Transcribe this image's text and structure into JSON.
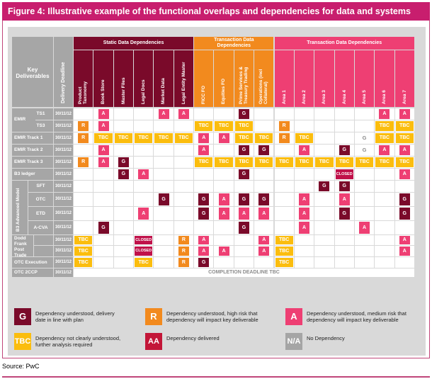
{
  "title": "Figure 4: Illustrative example of the functional overlaps and dependencies for data and systems",
  "header": {
    "key_deliverables": "Key\nDeliverables",
    "delivery_deadline": "Delivery Deadline",
    "groups": [
      "Static Data Dependencies",
      "Transaction Data\nDependencies",
      "Transaction Data Dependencies"
    ],
    "columns": [
      "Product\nTaxonomy",
      "Book Store",
      "Master Files",
      "Legal Docs",
      "Market Data",
      "Legal Entity Master",
      "FICC FO",
      "Equities FO",
      "Prime Services &\nTreasury Trading",
      "Operations (incl\nCollateral)",
      "Area 1",
      "Area 2",
      "Area 3",
      "Area 4",
      "Area 5",
      "Area 6",
      "Area 7"
    ]
  },
  "groups_col": {
    "emir": "EMIR",
    "b3_advanced": "B3 Advanced Model",
    "dodd_frank": "Dodd\nFrank\nPost\nTrade"
  },
  "rows": [
    {
      "sub": "TS1",
      "date": "30/11/12",
      "cells": [
        "",
        "A",
        "",
        "",
        "A",
        "A",
        "",
        "",
        "G",
        "",
        "",
        "",
        "",
        "",
        "",
        "A",
        "A"
      ]
    },
    {
      "sub": "TS3",
      "date": "30/11/12",
      "cells": [
        "R",
        "A",
        "",
        "",
        "",
        "",
        "TBC",
        "TBC",
        "TBC",
        "",
        "R",
        "",
        "",
        "",
        "",
        "TBC",
        "TBC"
      ]
    },
    {
      "label": "EMIR Track 1",
      "date": "30/11/12",
      "cells": [
        "R",
        "TBC",
        "TBC",
        "TBC",
        "TBC",
        "TBC",
        "A",
        "A",
        "TBC",
        "TBC",
        "R",
        "TBC",
        "",
        "",
        "G",
        "TBC",
        "TBC"
      ]
    },
    {
      "label": "EMIR Track 2",
      "date": "30/11/12",
      "cells": [
        "",
        "A",
        "",
        "",
        "",
        "",
        "A",
        "",
        "G",
        "G",
        "",
        "A",
        "",
        "G",
        "G",
        "A",
        "A"
      ]
    },
    {
      "label": "EMIR Track 3",
      "date": "30/11/12",
      "cells": [
        "R",
        "A",
        "G",
        "",
        "",
        "",
        "TBC",
        "TBC",
        "TBC",
        "TBC",
        "TBC",
        "TBC",
        "TBC",
        "TBC",
        "TBC",
        "TBC",
        "TBC"
      ]
    },
    {
      "label": "B3 ledger",
      "date": "30/11/12",
      "cells": [
        "",
        "",
        "G",
        "A",
        "",
        "",
        "",
        "",
        "G",
        "",
        "",
        "",
        "",
        "CLOSED",
        "",
        "",
        "A"
      ]
    },
    {
      "sub": "SFT",
      "date": "30/11/12",
      "cells": [
        "",
        "",
        "",
        "",
        "",
        "",
        "",
        "",
        "",
        "",
        "",
        "",
        "G",
        "G",
        "",
        "",
        ""
      ]
    },
    {
      "sub": "OTC",
      "date": "30/11/12",
      "cells": [
        "",
        "",
        "",
        "",
        "G",
        "",
        "G",
        "A",
        "G",
        "G",
        "",
        "A",
        "",
        "A",
        "",
        "",
        "G"
      ]
    },
    {
      "sub": "ETD",
      "date": "30/11/12",
      "cells": [
        "",
        "",
        "",
        "A",
        "",
        "",
        "G",
        "A",
        "A",
        "A",
        "",
        "A",
        "",
        "G",
        "",
        "",
        "G"
      ]
    },
    {
      "sub": "A-CVA",
      "date": "30/11/12",
      "cells": [
        "",
        "G",
        "",
        "",
        "",
        "",
        "",
        "",
        "G",
        "",
        "",
        "A",
        "",
        "",
        "A",
        "",
        ""
      ]
    },
    {
      "sub": "",
      "date": "30/11/12",
      "cells": [
        "TBC",
        "",
        "",
        "CLOSED",
        "",
        "R",
        "A",
        "",
        "",
        "A",
        "TBC",
        "",
        "",
        "",
        "",
        "",
        "A"
      ]
    },
    {
      "sub": "",
      "date": "30/11/12",
      "cells": [
        "TBC",
        "",
        "",
        "CLOSED",
        "",
        "R",
        "A",
        "A",
        "",
        "A",
        "TBC",
        "",
        "",
        "",
        "",
        "",
        "A"
      ]
    },
    {
      "label": "OTC Execution",
      "date": "30/11/12",
      "cells": [
        "TBC",
        "",
        "",
        "TBC",
        "",
        "R",
        "G",
        "",
        "",
        "",
        "TBC",
        "",
        "",
        "",
        "",
        "",
        ""
      ]
    },
    {
      "label": "OTC 2CCP",
      "date": "30/11/12",
      "note": "COMPLETION DEADLINE TBC"
    }
  ],
  "legend": [
    {
      "key": "G",
      "color": "#7a0a2a",
      "text": "Dependency understood, delivery\ndate in line with plan"
    },
    {
      "key": "R",
      "color": "#f28a1e",
      "text": "Dependency understood, high risk that\ndependency will impact key deliverable"
    },
    {
      "key": "A",
      "color": "#ee3f73",
      "text": "Dependency understood, medium risk that\ndependency will impact key deliverable"
    },
    {
      "key": "TBC",
      "color": "#fbbd0e",
      "text": "Dependency not clearly understood,\nfurther analysis required"
    },
    {
      "key": "AA",
      "color": "#c31638",
      "text": "Dependency delivered"
    },
    {
      "key": "N/A",
      "color": "#a5a5a5",
      "text": "No Dependency"
    }
  ],
  "source": "Source: PwC",
  "colors": {
    "G": "#7a0a2a",
    "R": "#f28a1e",
    "A": "#ee3f73",
    "TBC": "#fbbd0e",
    "CLOSED": "#c0114a",
    "header_dark": "#7a0a2a",
    "header_orange": "#f28a1e",
    "header_pink": "#ee3f73",
    "label_grey": "#a6a6a6"
  }
}
